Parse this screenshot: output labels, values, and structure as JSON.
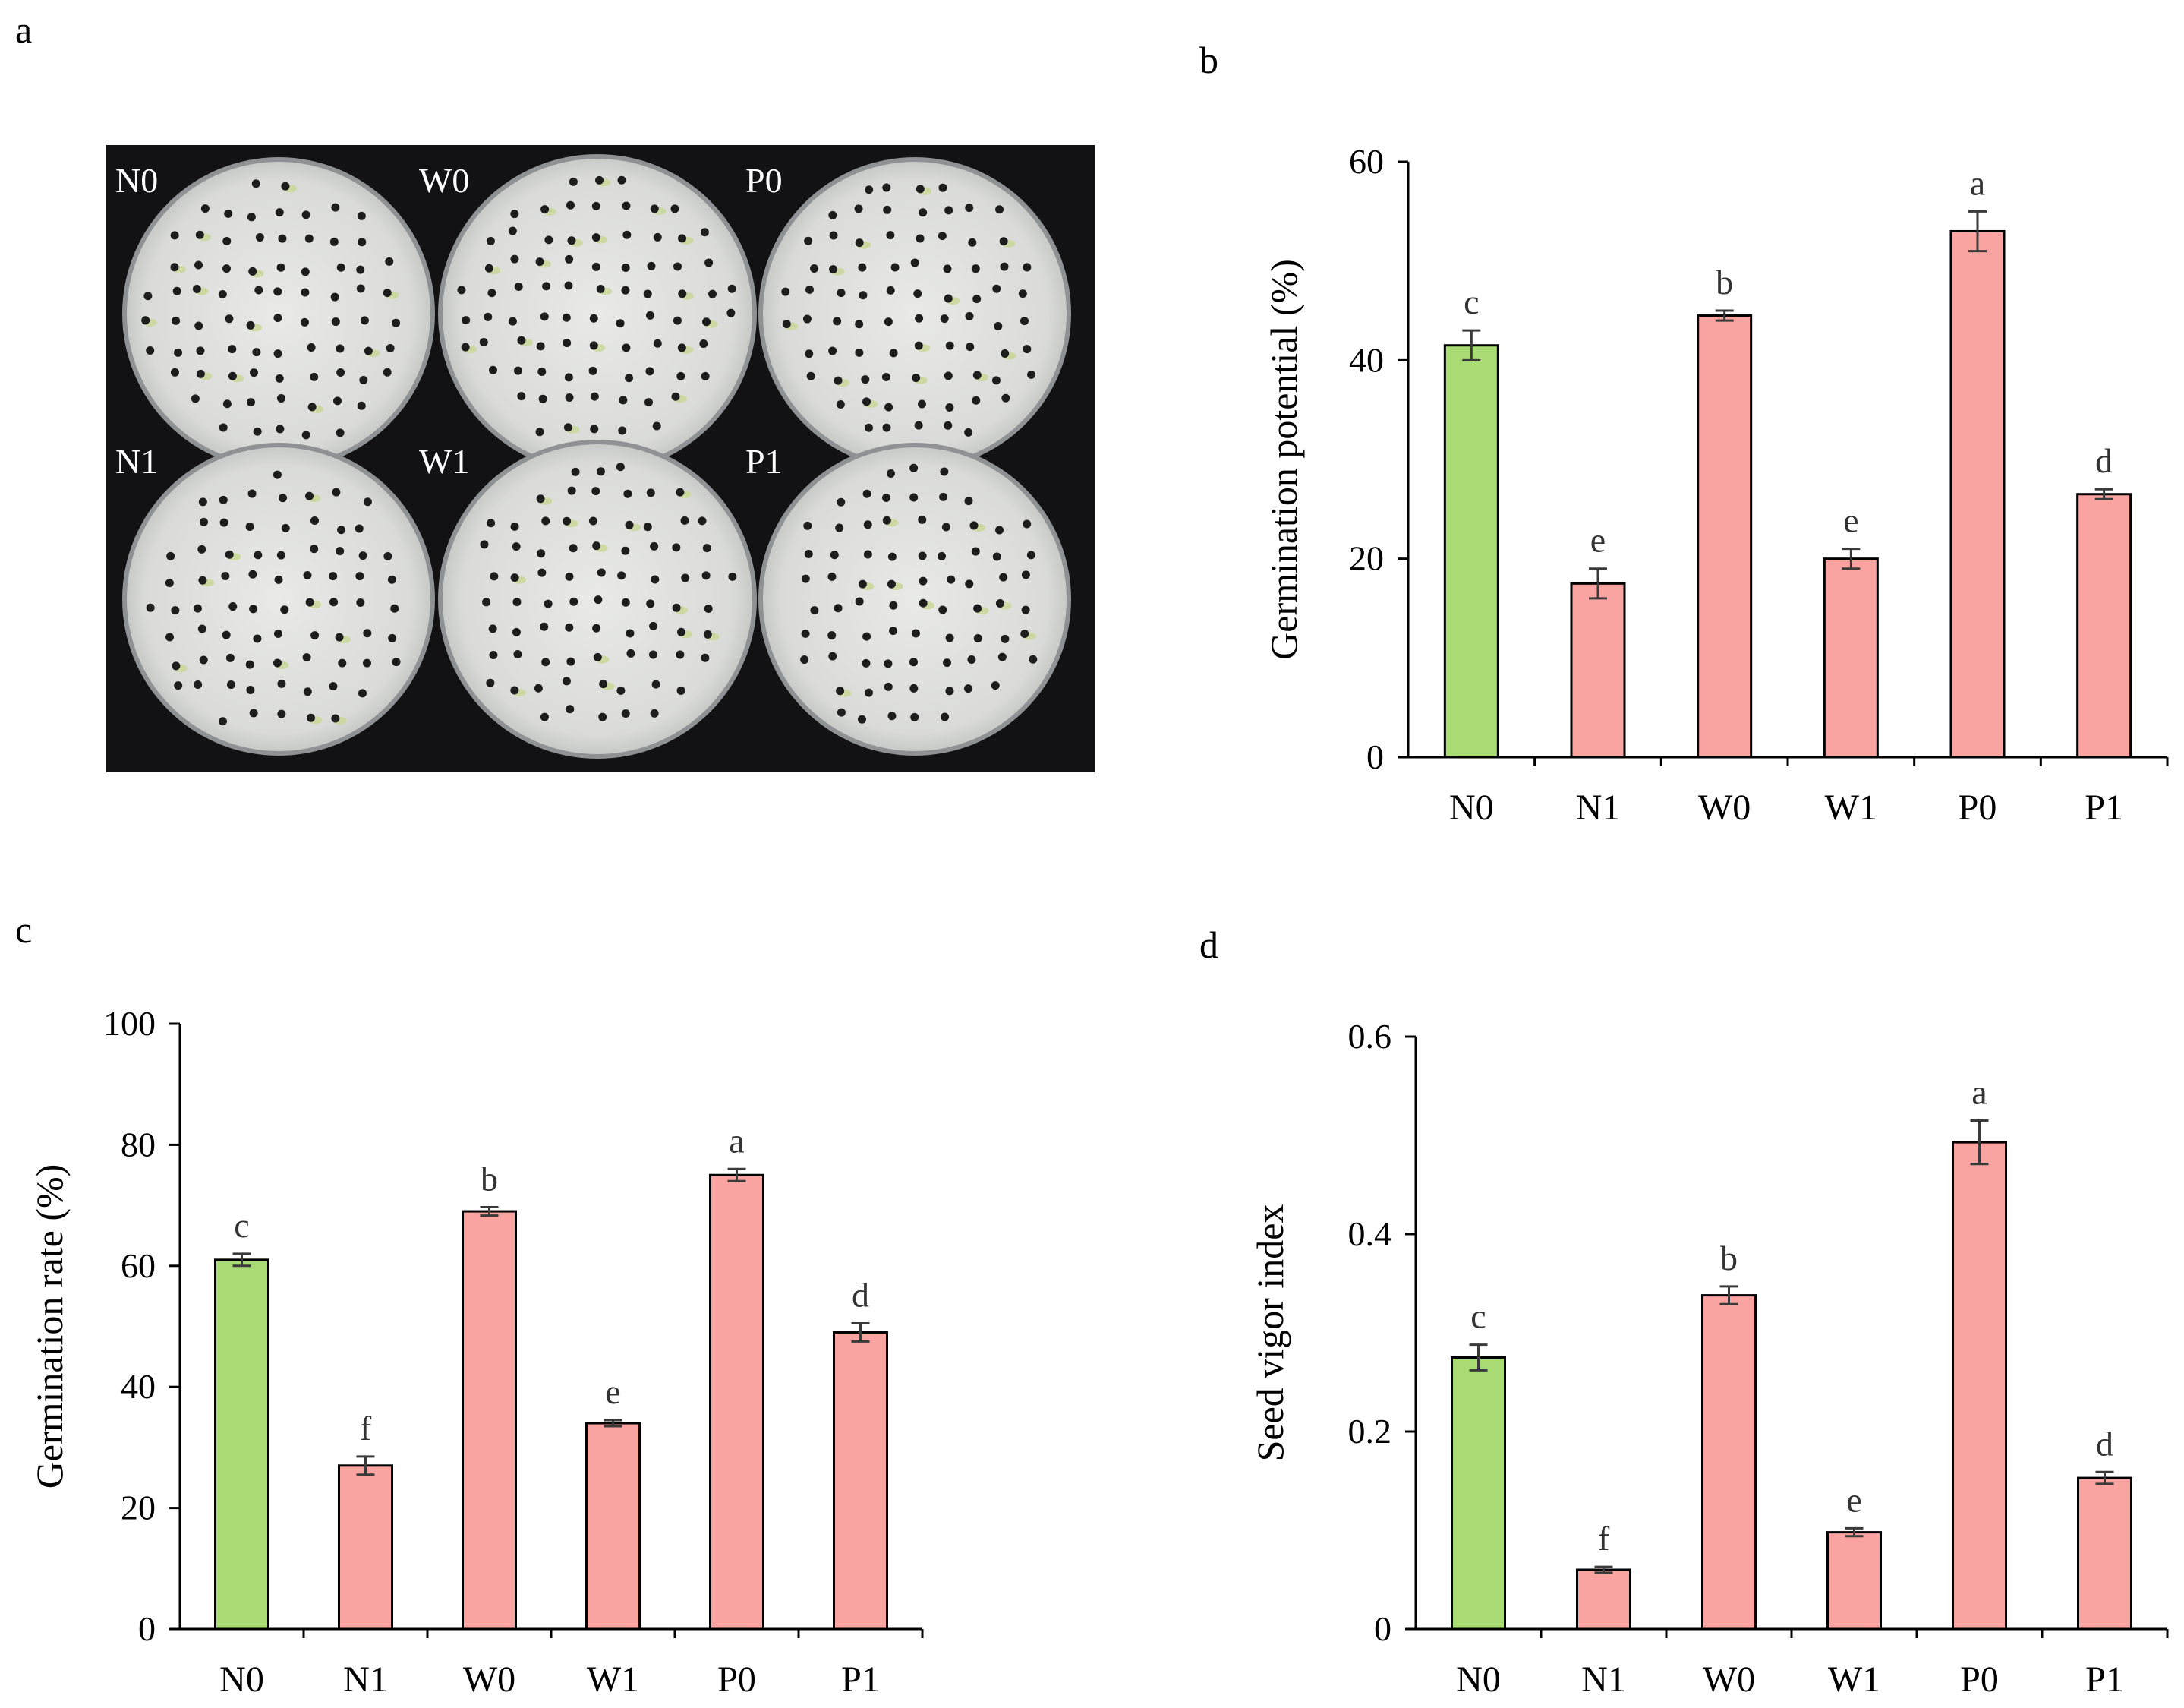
{
  "panels": {
    "a": "a",
    "b": "b",
    "c": "c",
    "d": "d"
  },
  "photo": {
    "plate_labels": [
      "N0",
      "W0",
      "P0",
      "N1",
      "W1",
      "P1"
    ]
  },
  "colors": {
    "control": "#a9db74",
    "treatment": "#f9a4a0",
    "axis": "#000000",
    "error": "#3a3a3a"
  },
  "chart_data": [
    {
      "panel": "b",
      "type": "bar",
      "title": "",
      "xlabel": "",
      "ylabel": "Germination potential (%)",
      "categories": [
        "N0",
        "N1",
        "W0",
        "W1",
        "P0",
        "P1"
      ],
      "values": [
        41.5,
        17.5,
        44.5,
        20,
        53,
        26.5
      ],
      "errors": [
        1.5,
        1.5,
        0.5,
        1.0,
        2.0,
        0.5
      ],
      "letters": [
        "c",
        "e",
        "b",
        "e",
        "a",
        "d"
      ],
      "ylim": [
        0,
        60
      ],
      "yticks": [
        0,
        20,
        40,
        60
      ],
      "ytick_labels": [
        "0",
        "20",
        "40",
        "60"
      ]
    },
    {
      "panel": "c",
      "type": "bar",
      "title": "",
      "xlabel": "",
      "ylabel": "Germination rate (%)",
      "categories": [
        "N0",
        "N1",
        "W0",
        "W1",
        "P0",
        "P1"
      ],
      "values": [
        61,
        27,
        69,
        34,
        75,
        49
      ],
      "errors": [
        1.0,
        1.5,
        0.7,
        0.5,
        1.0,
        1.5
      ],
      "letters": [
        "c",
        "f",
        "b",
        "e",
        "a",
        "d"
      ],
      "ylim": [
        0,
        100
      ],
      "yticks": [
        0,
        20,
        40,
        60,
        80,
        100
      ],
      "ytick_labels": [
        "0",
        "20",
        "40",
        "60",
        "80",
        "100"
      ]
    },
    {
      "panel": "d",
      "type": "bar",
      "title": "",
      "xlabel": "",
      "ylabel": "Seed vigor  index",
      "categories": [
        "N0",
        "N1",
        "W0",
        "W1",
        "P0",
        "P1"
      ],
      "values": [
        0.275,
        0.06,
        0.338,
        0.098,
        0.493,
        0.153
      ],
      "errors": [
        0.013,
        0.003,
        0.009,
        0.004,
        0.022,
        0.006
      ],
      "letters": [
        "c",
        "f",
        "b",
        "e",
        "a",
        "d"
      ],
      "ylim": [
        0,
        0.6
      ],
      "yticks": [
        0,
        0.2,
        0.4,
        0.6
      ],
      "ytick_labels": [
        "0",
        "0.2",
        "0.4",
        "0.6"
      ]
    }
  ]
}
